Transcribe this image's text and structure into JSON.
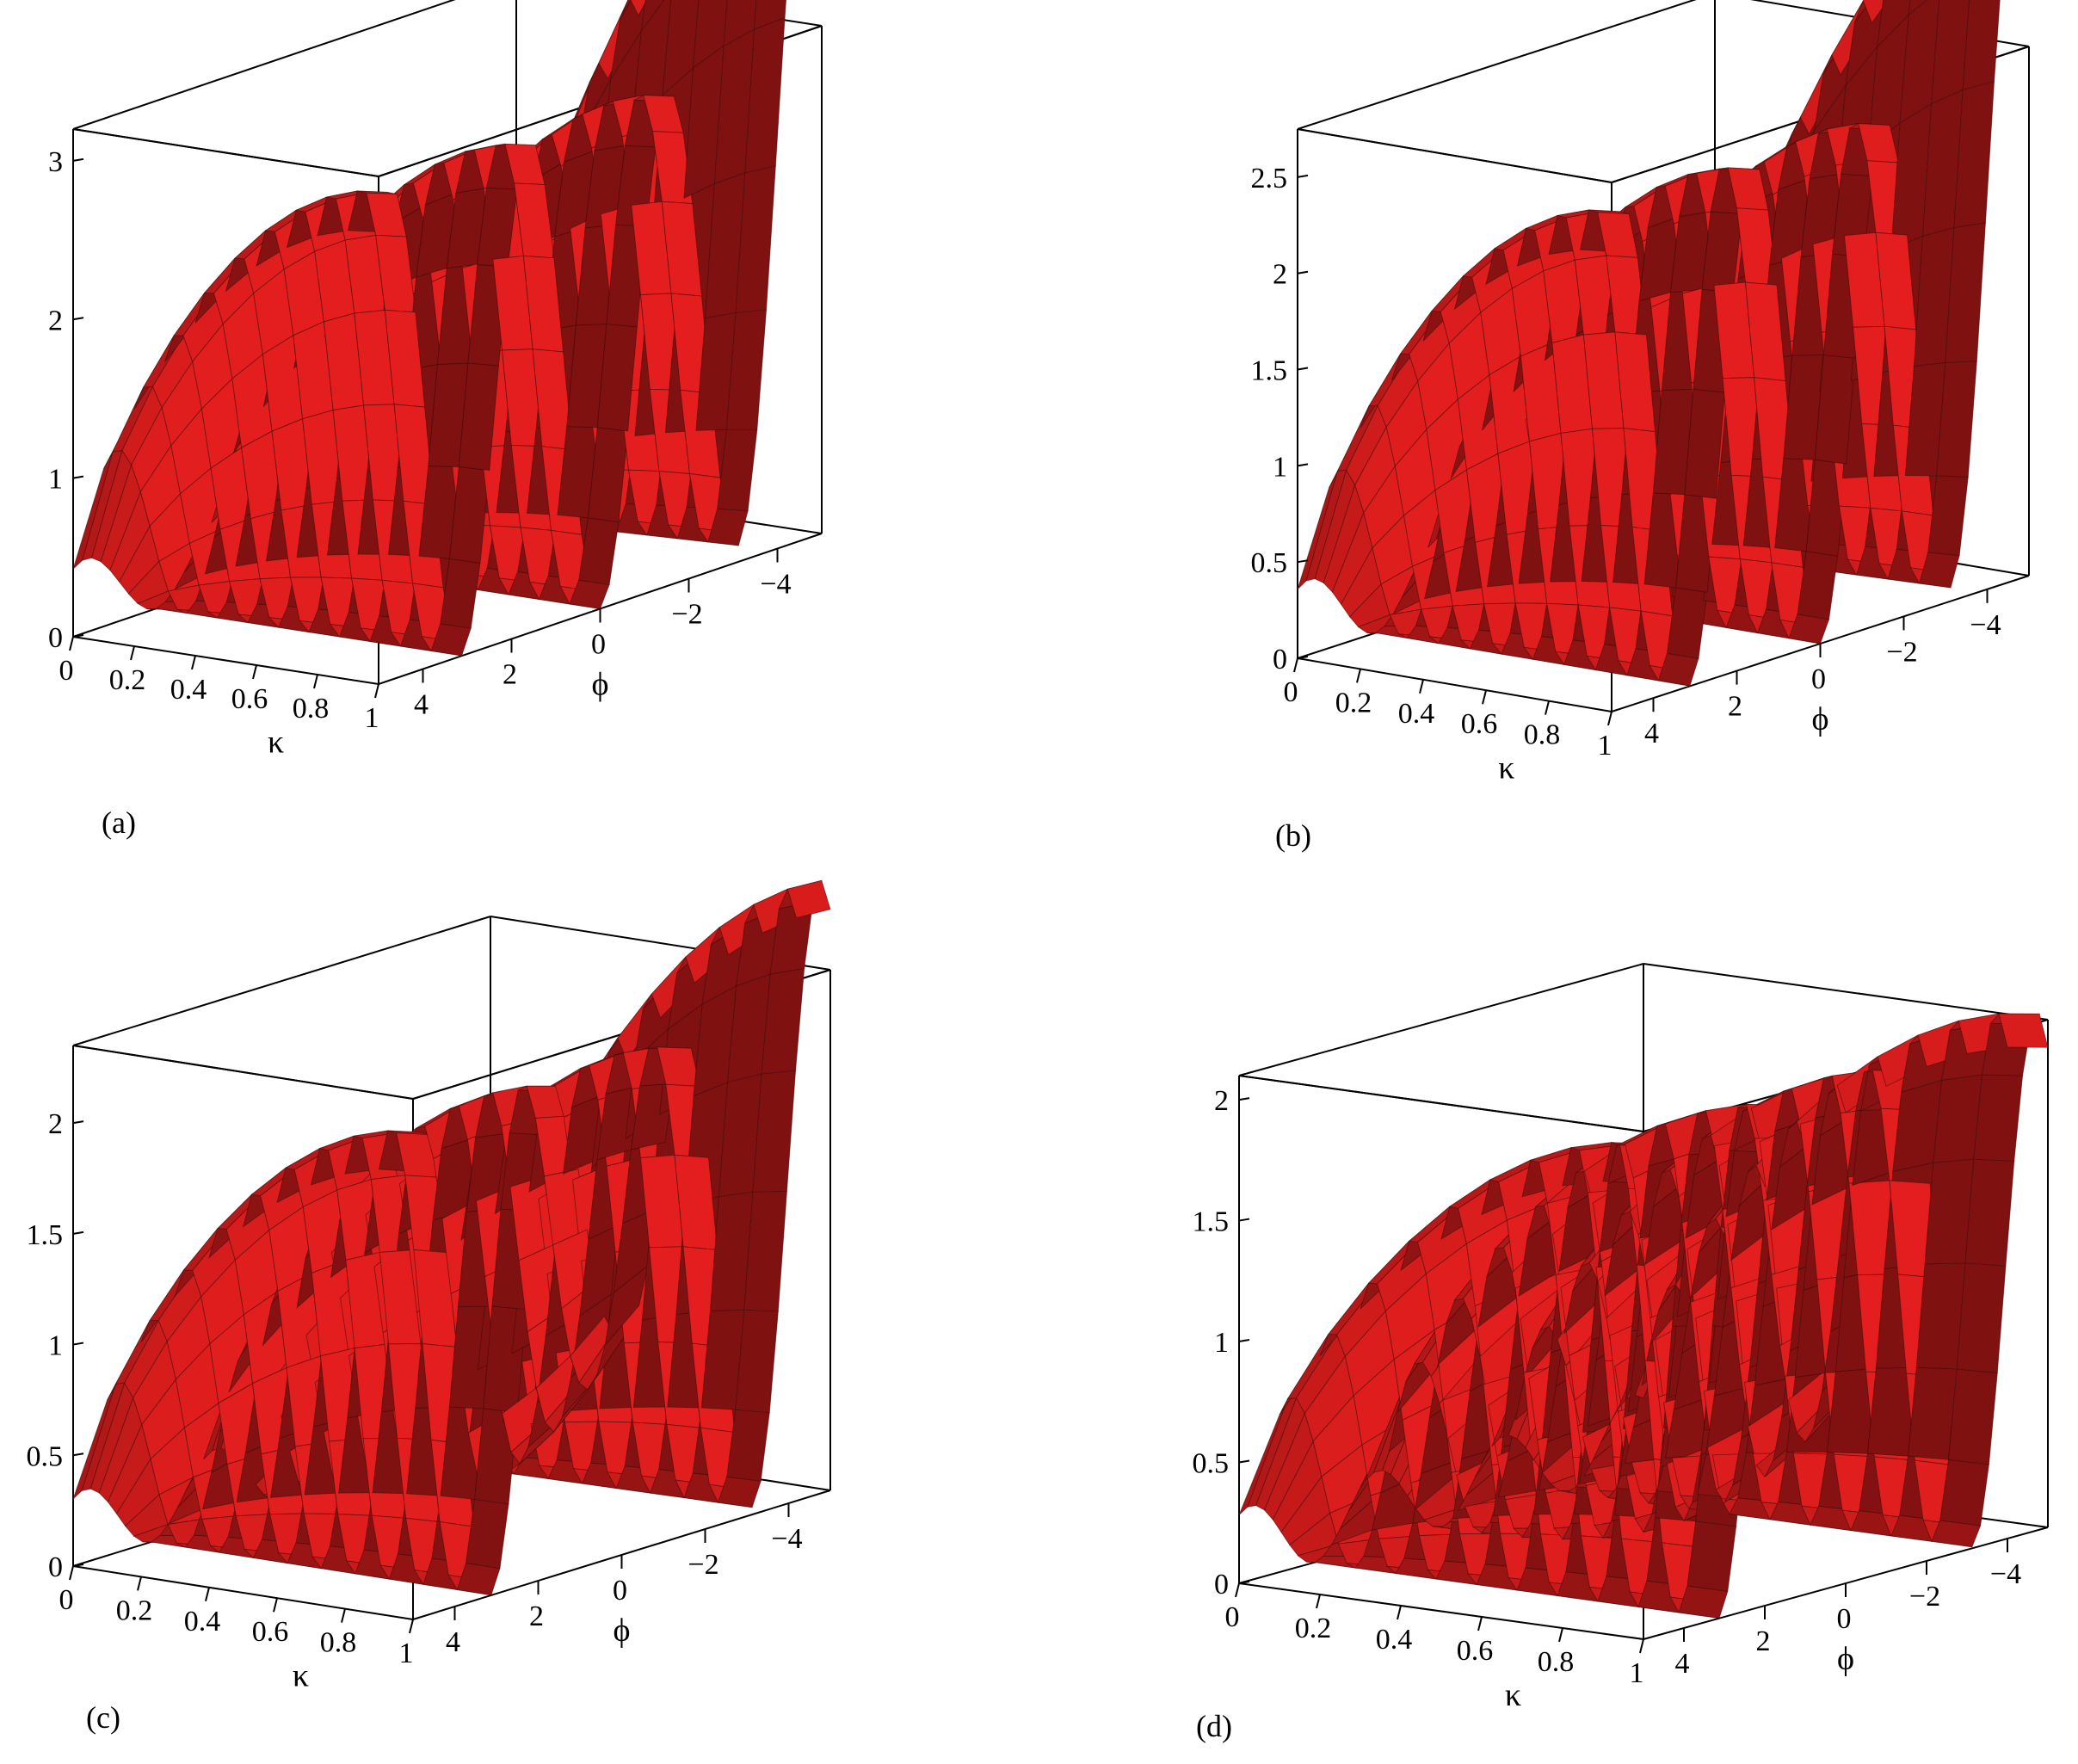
{
  "chart_data": [
    {
      "type": "surface3d",
      "caption": "(a)",
      "xlabel": "κ",
      "ylabel": "ϕ",
      "xlim": [
        0,
        1
      ],
      "ylim": [
        -5,
        5
      ],
      "zlim": [
        0,
        3.2
      ],
      "xticks": [
        "0",
        "0.2",
        "0.4",
        "0.6",
        "0.8",
        "1"
      ],
      "yticks": [
        "4",
        "2",
        "0",
        "−2",
        "−4"
      ],
      "zticks": [
        "0",
        "1",
        "2",
        "3"
      ],
      "color": "#e41e1e",
      "peak": 3.1,
      "edge_height": 1.9,
      "dip": 0.0
    },
    {
      "type": "surface3d",
      "caption": "(b)",
      "xlabel": "κ",
      "ylabel": "ϕ",
      "xlim": [
        0,
        1
      ],
      "ylim": [
        -5,
        5
      ],
      "zlim": [
        0,
        2.75
      ],
      "xticks": [
        "0",
        "0.2",
        "0.4",
        "0.6",
        "0.8",
        "1"
      ],
      "yticks": [
        "4",
        "2",
        "0",
        "−2",
        "−4"
      ],
      "zticks": [
        "0",
        "0.5",
        "1",
        "1.5",
        "2",
        "2.5"
      ],
      "color": "#e41e1e",
      "peak": 2.6,
      "edge_height": 1.3,
      "dip": 0.0
    },
    {
      "type": "surface3d",
      "caption": "(c)",
      "xlabel": "κ",
      "ylabel": "ϕ",
      "xlim": [
        0,
        1
      ],
      "ylim": [
        -5,
        5
      ],
      "zlim": [
        0,
        2.35
      ],
      "xticks": [
        "0",
        "0.2",
        "0.4",
        "0.6",
        "0.8",
        "1"
      ],
      "yticks": [
        "4",
        "2",
        "0",
        "−2",
        "−4"
      ],
      "zticks": [
        "0",
        "0.5",
        "1",
        "1.5",
        "2"
      ],
      "color": "#e41e1e",
      "peak": 2.2,
      "edge_height": 0.6,
      "dip": 0.45
    },
    {
      "type": "surface3d",
      "caption": "(d)",
      "xlabel": "κ",
      "ylabel": "ϕ",
      "xlim": [
        0,
        1
      ],
      "ylim": [
        -5,
        5
      ],
      "zlim": [
        0,
        2.1
      ],
      "xticks": [
        "0",
        "0.2",
        "0.4",
        "0.6",
        "0.8",
        "1"
      ],
      "yticks": [
        "4",
        "2",
        "0",
        "−2",
        "−4"
      ],
      "zticks": [
        "0",
        "0.5",
        "1",
        "1.5",
        "2"
      ],
      "color": "#e41e1e",
      "peak": 2.05,
      "edge_height": 0.1,
      "dip": 0.35
    }
  ]
}
